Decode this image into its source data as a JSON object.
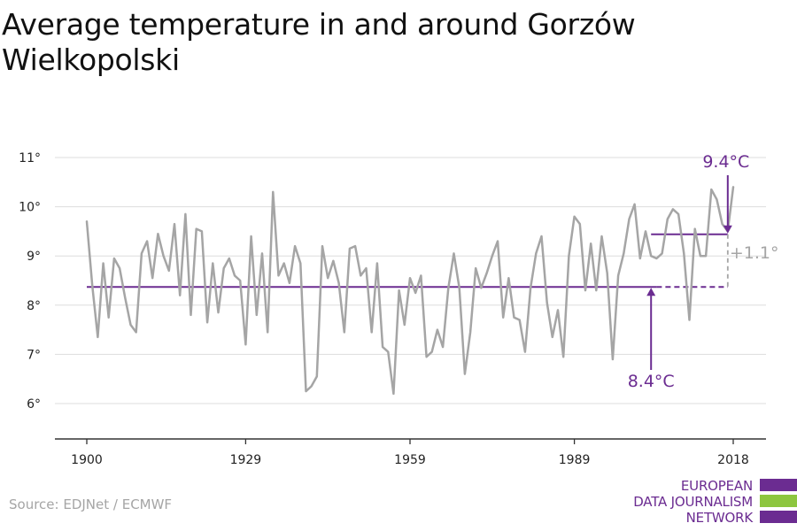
{
  "title": "Average temperature in and around Gorzów Wielkopolski",
  "source": "Source: EDJNet / ECMWF",
  "logo": {
    "lines": [
      "EUROPEAN",
      "DATA JOURNALISM",
      "NETWORK"
    ],
    "bar_colors": [
      "#6b2c91",
      "#8dc63f",
      "#6b2c91"
    ]
  },
  "colors": {
    "series": "#a5a5a5",
    "accent": "#6b2c91",
    "grid": "#dddddd",
    "axis": "#333333",
    "delta": "#a5a5a5"
  },
  "chart_data": {
    "type": "line",
    "title": "Average temperature in and around Gorzów Wielkopolski",
    "xlabel": "",
    "ylabel": "",
    "xlim": [
      1900,
      2018
    ],
    "ylim": [
      5.5,
      11.2
    ],
    "x_ticks": [
      {
        "value": 1900,
        "label": "1900"
      },
      {
        "value": 1929,
        "label": "1929"
      },
      {
        "value": 1959,
        "label": "1959"
      },
      {
        "value": 1989,
        "label": "1989"
      },
      {
        "value": 2018,
        "label": "2018"
      }
    ],
    "y_ticks": [
      {
        "value": 6,
        "label": "6°"
      },
      {
        "value": 7,
        "label": "7°"
      },
      {
        "value": 8,
        "label": "8°"
      },
      {
        "value": 9,
        "label": "9°"
      },
      {
        "value": 10,
        "label": "10°"
      },
      {
        "value": 11,
        "label": "11°"
      }
    ],
    "grid": true,
    "series": [
      {
        "x": [
          1900,
          1901,
          1902,
          1903,
          1904,
          1905,
          1906,
          1907,
          1908,
          1909,
          1910,
          1911,
          1912,
          1913,
          1914,
          1915,
          1916,
          1917,
          1918,
          1919,
          1920,
          1921,
          1922,
          1923,
          1924,
          1925,
          1926,
          1927,
          1928,
          1929,
          1930,
          1931,
          1932,
          1933,
          1934,
          1935,
          1936,
          1937,
          1938,
          1939,
          1940,
          1941,
          1942,
          1943,
          1944,
          1945,
          1946,
          1947,
          1948,
          1949,
          1950,
          1951,
          1952,
          1953,
          1954,
          1955,
          1956,
          1957,
          1958,
          1959,
          1960,
          1961,
          1962,
          1963,
          1964,
          1965,
          1966,
          1967,
          1968,
          1969,
          1970,
          1971,
          1972,
          1973,
          1974,
          1975,
          1976,
          1977,
          1978,
          1979,
          1980,
          1981,
          1982,
          1983,
          1984,
          1985,
          1986,
          1987,
          1988,
          1989,
          1990,
          1991,
          1992,
          1993,
          1994,
          1995,
          1996,
          1997,
          1998,
          1999,
          2000,
          2001,
          2002,
          2003,
          2004,
          2005,
          2006,
          2007,
          2008,
          2009,
          2010,
          2011,
          2012,
          2013,
          2014,
          2015,
          2016,
          2017,
          2018
        ],
        "values": [
          9.7,
          8.4,
          7.35,
          8.85,
          7.75,
          8.95,
          8.75,
          8.15,
          7.6,
          7.45,
          9.05,
          9.3,
          8.55,
          9.45,
          9.0,
          8.7,
          9.65,
          8.2,
          9.85,
          7.8,
          9.55,
          9.5,
          7.65,
          8.85,
          7.85,
          8.75,
          8.95,
          8.6,
          8.5,
          7.2,
          9.4,
          7.8,
          9.05,
          7.45,
          10.3,
          8.6,
          8.85,
          8.45,
          9.2,
          8.85,
          6.25,
          6.35,
          6.55,
          9.2,
          8.55,
          8.9,
          8.45,
          7.45,
          9.15,
          9.2,
          8.6,
          8.75,
          7.45,
          8.85,
          7.15,
          7.05,
          6.2,
          8.3,
          7.6,
          8.55,
          8.25,
          8.6,
          6.95,
          7.05,
          7.5,
          7.15,
          8.35,
          9.05,
          8.35,
          6.6,
          7.45,
          8.75,
          8.35,
          8.65,
          9.0,
          9.3,
          7.75,
          8.55,
          7.75,
          7.7,
          7.05,
          8.35,
          9.05,
          9.4,
          8.05,
          7.35,
          7.9,
          6.95,
          9.0,
          9.8,
          9.65,
          8.3,
          9.25,
          8.3,
          9.4,
          8.65,
          6.9,
          8.6,
          9.05,
          9.75,
          10.05,
          8.95,
          9.5,
          9.0,
          8.95,
          9.05,
          9.75,
          9.95,
          9.85,
          9.05,
          7.7,
          9.55,
          9.0,
          9.0,
          10.35,
          10.15,
          9.65,
          9.5,
          10.4
        ]
      }
    ],
    "reference_lines": [
      {
        "from": 1900,
        "to": 2004,
        "value": 8.37,
        "style": "solid"
      },
      {
        "from": 2004,
        "to": 2017,
        "value": 8.37,
        "style": "dashed"
      },
      {
        "from": 2003,
        "to": 2017,
        "value": 9.44,
        "style": "solid"
      }
    ],
    "annotations": {
      "recent_avg": {
        "label": "9.4°C",
        "x": 2017,
        "value": 9.44
      },
      "baseline_avg": {
        "label": "8.4°C",
        "x": 2003,
        "value": 8.37
      },
      "delta": {
        "label": "+1.1°",
        "x": 2017,
        "from": 8.37,
        "to": 9.44
      }
    }
  }
}
